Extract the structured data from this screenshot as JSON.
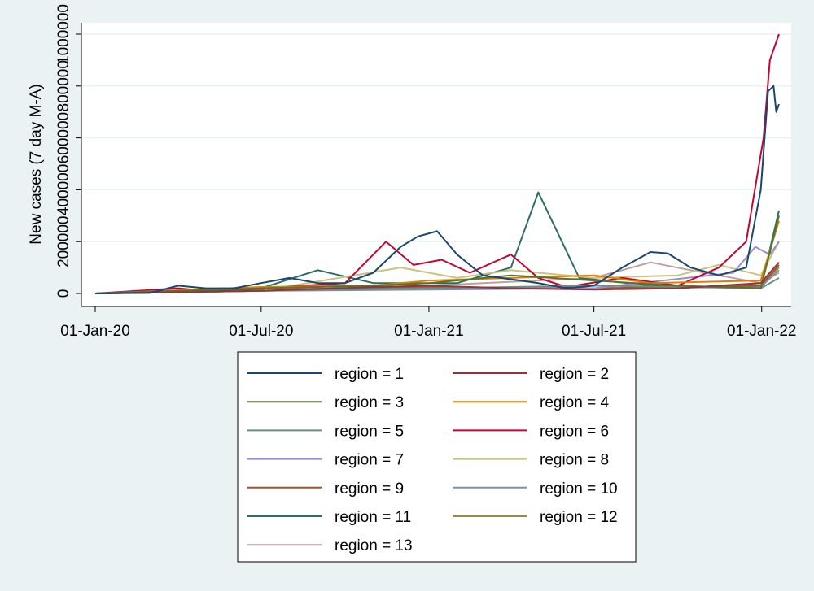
{
  "chart_data": {
    "type": "line",
    "title": "",
    "ylabel": "New cases (7 day M-A)",
    "xlabel": "",
    "ylim": [
      0,
      1000000
    ],
    "xlim": [
      "2020-01-01",
      "2022-01-20"
    ],
    "yticks": [
      0,
      200000,
      400000,
      600000,
      800000,
      1000000
    ],
    "ytick_labels": [
      "0",
      "200000",
      "400000",
      "600000",
      "800000",
      "1000000"
    ],
    "xticks": [
      "2020-01-01",
      "2020-07-01",
      "2021-01-01",
      "2021-07-01",
      "2022-01-01"
    ],
    "xtick_labels": [
      "01-Jan-20",
      "01-Jul-20",
      "01-Jan-21",
      "01-Jul-21",
      "01-Jan-22"
    ],
    "grid": "horizontal",
    "legend_position": "bottom",
    "series": [
      {
        "name": "region = 1",
        "color": "#1a476f",
        "points": [
          [
            "2020-01-01",
            0
          ],
          [
            "2020-03-01",
            2000
          ],
          [
            "2020-04-01",
            30000
          ],
          [
            "2020-05-01",
            20000
          ],
          [
            "2020-06-01",
            20000
          ],
          [
            "2020-07-01",
            40000
          ],
          [
            "2020-08-01",
            60000
          ],
          [
            "2020-09-01",
            40000
          ],
          [
            "2020-10-01",
            40000
          ],
          [
            "2020-11-01",
            80000
          ],
          [
            "2020-12-01",
            180000
          ],
          [
            "2020-12-20",
            220000
          ],
          [
            "2021-01-10",
            240000
          ],
          [
            "2021-02-01",
            150000
          ],
          [
            "2021-03-01",
            70000
          ],
          [
            "2021-05-01",
            40000
          ],
          [
            "2021-06-01",
            20000
          ],
          [
            "2021-07-01",
            30000
          ],
          [
            "2021-08-01",
            100000
          ],
          [
            "2021-09-01",
            160000
          ],
          [
            "2021-09-20",
            155000
          ],
          [
            "2021-10-15",
            100000
          ],
          [
            "2021-11-15",
            70000
          ],
          [
            "2021-12-15",
            100000
          ],
          [
            "2021-12-31",
            400000
          ],
          [
            "2022-01-08",
            780000
          ],
          [
            "2022-01-14",
            800000
          ],
          [
            "2022-01-17",
            700000
          ],
          [
            "2022-01-20",
            730000
          ]
        ]
      },
      {
        "name": "region = 2",
        "color": "#90353b",
        "points": [
          [
            "2020-01-01",
            0
          ],
          [
            "2020-07-01",
            10000
          ],
          [
            "2020-11-01",
            25000
          ],
          [
            "2021-01-01",
            30000
          ],
          [
            "2021-04-01",
            20000
          ],
          [
            "2021-07-01",
            15000
          ],
          [
            "2021-10-01",
            20000
          ],
          [
            "2021-12-31",
            40000
          ],
          [
            "2022-01-20",
            120000
          ]
        ]
      },
      {
        "name": "region = 3",
        "color": "#55752f",
        "points": [
          [
            "2020-01-01",
            0
          ],
          [
            "2020-07-01",
            20000
          ],
          [
            "2020-11-01",
            30000
          ],
          [
            "2021-01-01",
            40000
          ],
          [
            "2021-04-01",
            70000
          ],
          [
            "2021-07-01",
            50000
          ],
          [
            "2021-10-01",
            30000
          ],
          [
            "2021-12-31",
            20000
          ],
          [
            "2022-01-20",
            300000
          ]
        ]
      },
      {
        "name": "region = 4",
        "color": "#e37e00",
        "points": [
          [
            "2020-01-01",
            0
          ],
          [
            "2020-07-01",
            25000
          ],
          [
            "2020-11-01",
            30000
          ],
          [
            "2021-01-01",
            50000
          ],
          [
            "2021-04-01",
            60000
          ],
          [
            "2021-07-01",
            70000
          ],
          [
            "2021-09-01",
            40000
          ],
          [
            "2021-12-31",
            50000
          ],
          [
            "2022-01-20",
            280000
          ]
        ]
      },
      {
        "name": "region = 5",
        "color": "#6e8e84",
        "points": [
          [
            "2020-01-01",
            0
          ],
          [
            "2020-07-01",
            10000
          ],
          [
            "2021-01-01",
            20000
          ],
          [
            "2021-07-01",
            30000
          ],
          [
            "2021-12-31",
            20000
          ],
          [
            "2022-01-20",
            60000
          ]
        ]
      },
      {
        "name": "region = 6",
        "color": "#c10534",
        "points": [
          [
            "2020-01-01",
            0
          ],
          [
            "2020-04-01",
            20000
          ],
          [
            "2020-05-01",
            10000
          ],
          [
            "2020-07-01",
            20000
          ],
          [
            "2020-10-01",
            40000
          ],
          [
            "2020-11-15",
            200000
          ],
          [
            "2020-12-15",
            110000
          ],
          [
            "2021-01-15",
            130000
          ],
          [
            "2021-02-15",
            80000
          ],
          [
            "2021-04-01",
            150000
          ],
          [
            "2021-05-01",
            60000
          ],
          [
            "2021-06-01",
            25000
          ],
          [
            "2021-08-01",
            60000
          ],
          [
            "2021-10-01",
            30000
          ],
          [
            "2021-11-15",
            100000
          ],
          [
            "2021-12-15",
            200000
          ],
          [
            "2022-01-03",
            600000
          ],
          [
            "2022-01-10",
            900000
          ],
          [
            "2022-01-20",
            1000000
          ]
        ]
      },
      {
        "name": "region = 7",
        "color": "#938dd2",
        "points": [
          [
            "2020-01-01",
            0
          ],
          [
            "2020-07-01",
            10000
          ],
          [
            "2021-01-01",
            20000
          ],
          [
            "2021-07-01",
            20000
          ],
          [
            "2021-12-01",
            80000
          ],
          [
            "2021-12-25",
            180000
          ],
          [
            "2022-01-10",
            150000
          ],
          [
            "2022-01-20",
            200000
          ]
        ]
      },
      {
        "name": "region = 8",
        "color": "#cac27e",
        "points": [
          [
            "2020-01-01",
            0
          ],
          [
            "2020-07-01",
            10000
          ],
          [
            "2020-12-01",
            100000
          ],
          [
            "2021-02-01",
            60000
          ],
          [
            "2021-04-01",
            90000
          ],
          [
            "2021-07-01",
            60000
          ],
          [
            "2021-10-01",
            70000
          ],
          [
            "2021-11-15",
            110000
          ],
          [
            "2021-12-31",
            70000
          ],
          [
            "2022-01-20",
            200000
          ]
        ]
      },
      {
        "name": "region = 9",
        "color": "#a0522d",
        "points": [
          [
            "2020-01-01",
            0
          ],
          [
            "2020-07-01",
            15000
          ],
          [
            "2021-01-01",
            25000
          ],
          [
            "2021-07-01",
            20000
          ],
          [
            "2021-12-31",
            30000
          ],
          [
            "2022-01-20",
            110000
          ]
        ]
      },
      {
        "name": "region = 10",
        "color": "#7b92a8",
        "points": [
          [
            "2020-01-01",
            0
          ],
          [
            "2020-07-01",
            10000
          ],
          [
            "2021-01-01",
            15000
          ],
          [
            "2021-07-01",
            20000
          ],
          [
            "2021-12-31",
            25000
          ],
          [
            "2022-01-20",
            90000
          ]
        ]
      },
      {
        "name": "region = 11",
        "color": "#2d6d66",
        "points": [
          [
            "2020-01-01",
            0
          ],
          [
            "2020-07-01",
            20000
          ],
          [
            "2020-09-01",
            90000
          ],
          [
            "2020-11-01",
            40000
          ],
          [
            "2021-02-01",
            40000
          ],
          [
            "2021-04-01",
            100000
          ],
          [
            "2021-05-01",
            390000
          ],
          [
            "2021-06-15",
            60000
          ],
          [
            "2021-09-01",
            30000
          ],
          [
            "2021-12-31",
            20000
          ],
          [
            "2022-01-20",
            320000
          ]
        ]
      },
      {
        "name": "region = 12",
        "color": "#9c8847",
        "points": [
          [
            "2020-01-01",
            0
          ],
          [
            "2020-07-01",
            10000
          ],
          [
            "2021-01-01",
            20000
          ],
          [
            "2021-07-01",
            20000
          ],
          [
            "2021-12-31",
            30000
          ],
          [
            "2022-01-20",
            100000
          ]
        ]
      },
      {
        "name": "region = 13",
        "color": "#bfa19c",
        "points": [
          [
            "2020-01-01",
            0
          ],
          [
            "2020-07-01",
            10000
          ],
          [
            "2021-01-01",
            30000
          ],
          [
            "2021-07-01",
            60000
          ],
          [
            "2021-09-01",
            120000
          ],
          [
            "2021-10-15",
            90000
          ],
          [
            "2021-12-31",
            40000
          ],
          [
            "2022-01-20",
            80000
          ]
        ]
      }
    ]
  }
}
